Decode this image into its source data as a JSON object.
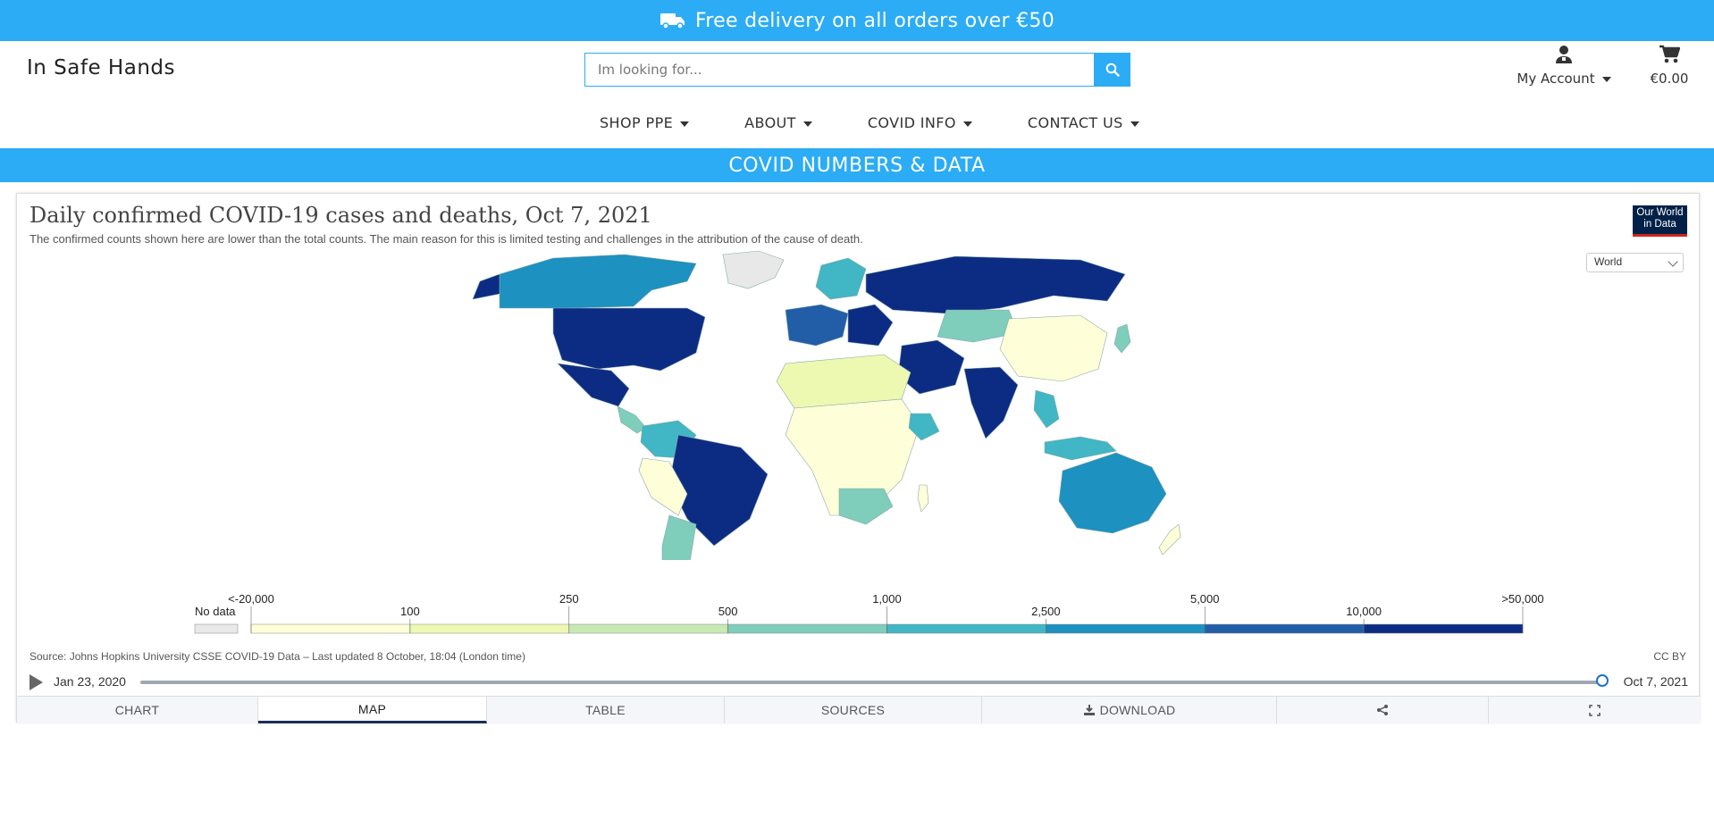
{
  "promo": {
    "text": "Free delivery on all orders over €50"
  },
  "brand": {
    "name": "In Safe Hands"
  },
  "search": {
    "placeholder": "Im looking for...",
    "value": ""
  },
  "account": {
    "label": "My Account"
  },
  "cart": {
    "total": "€0.00"
  },
  "nav": [
    {
      "label": "SHOP PPE"
    },
    {
      "label": "ABOUT"
    },
    {
      "label": "COVID INFO"
    },
    {
      "label": "CONTACT US"
    }
  ],
  "section_title": "COVID NUMBERS & DATA",
  "chart": {
    "title": "Daily confirmed COVID-19 cases and deaths, Oct 7, 2021",
    "subtitle": "The confirmed counts shown here are lower than the total counts. The main reason for this is limited testing and challenges in the attribution of the cause of death.",
    "logo_text": "Our World in Data",
    "region_selected": "World",
    "source": "Source: Johns Hopkins University CSSE COVID-19 Data – Last updated 8 October, 18:04 (London time)",
    "license": "CC BY",
    "timeline": {
      "start": "Jan 23, 2020",
      "end": "Oct 7, 2021"
    },
    "tabs": [
      {
        "label": "CHART"
      },
      {
        "label": "MAP",
        "active": true
      },
      {
        "label": "TABLE"
      },
      {
        "label": "SOURCES"
      },
      {
        "label": "DOWNLOAD"
      },
      {
        "label": ""
      },
      {
        "label": ""
      }
    ]
  },
  "chart_data": {
    "type": "heatmap",
    "title": "Daily confirmed COVID-19 cases and deaths, Oct 7, 2021",
    "legend": {
      "no_data_label": "No data",
      "no_data_color": "#e8e8e8",
      "ticks": [
        "<-20,000",
        "100",
        "250",
        "500",
        "1,000",
        "2,500",
        "5,000",
        "10,000",
        ">50,000"
      ],
      "colors": [
        "#feffd8",
        "#edf8b1",
        "#c7e9b4",
        "#7fcdbb",
        "#41b6c4",
        "#1d91c0",
        "#225ea8",
        "#0c2c84"
      ]
    }
  }
}
